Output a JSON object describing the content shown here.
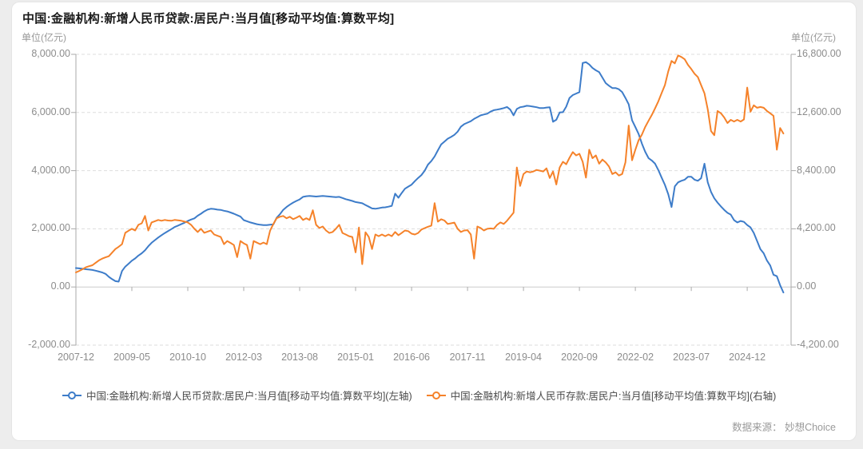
{
  "card": {
    "title": "中国:金融机构:新增人民币贷款:居民户:当月值[移动平均值:算数平均]",
    "left_unit": "单位(亿元)",
    "right_unit": "单位(亿元)",
    "source": "数据来源： 妙想Choice"
  },
  "colors": {
    "loan_series_blue": "#3d7cc9",
    "deposit_series_orange": "#f5822a",
    "grid": "#dddddd",
    "axis": "#aaaaaa"
  },
  "chart_data": {
    "type": "line",
    "frequency": "monthly",
    "x_start": "2007-12",
    "x_end": "2025-11",
    "grid": "horizontal dashed lines, x-axis line drawn on zero",
    "legend_position": "bottom",
    "x_tick_labels": [
      "2007-12",
      "2009-05",
      "2010-10",
      "2012-03",
      "2013-08",
      "2015-01",
      "2016-06",
      "2017-11",
      "2019-04",
      "2020-09",
      "2022-02",
      "2023-07",
      "2024-12"
    ],
    "x_tick_month_indices": [
      0,
      17,
      34,
      51,
      68,
      85,
      102,
      119,
      136,
      153,
      170,
      187,
      204
    ],
    "left_axis": {
      "unit": "亿元",
      "range": [
        -2000,
        8000
      ],
      "ticks": [
        8000,
        6000,
        4000,
        2000,
        0,
        -2000
      ],
      "tick_labels": [
        "8,000.00",
        "6,000.00",
        "4,000.00",
        "2,000.00",
        "0.00",
        "-2,000.00"
      ]
    },
    "right_axis": {
      "unit": "亿元",
      "range": [
        -4200,
        16800
      ],
      "ticks": [
        16800,
        12600,
        8400,
        4200,
        0,
        -4200
      ],
      "tick_labels": [
        "16,800.00",
        "12,600.00",
        "8,400.00",
        "4,200.00",
        "0.00",
        "-4,200.00"
      ]
    },
    "series": [
      {
        "name": "中国:金融机构:新增人民币贷款:居民户:当月值[移动平均值:算数平均](左轴)",
        "axis": "left",
        "color": "#3d7cc9",
        "values": [
          650,
          640,
          625,
          610,
          600,
          585,
          560,
          530,
          500,
          450,
          350,
          270,
          200,
          185,
          550,
          700,
          800,
          905,
          980,
          1080,
          1160,
          1260,
          1400,
          1520,
          1610,
          1700,
          1780,
          1855,
          1920,
          1990,
          2060,
          2110,
          2160,
          2210,
          2270,
          2320,
          2360,
          2450,
          2520,
          2600,
          2660,
          2690,
          2680,
          2660,
          2650,
          2620,
          2600,
          2560,
          2520,
          2470,
          2420,
          2300,
          2260,
          2220,
          2190,
          2160,
          2140,
          2130,
          2130,
          2140,
          2150,
          2380,
          2500,
          2650,
          2750,
          2830,
          2900,
          2960,
          3010,
          3100,
          3120,
          3130,
          3120,
          3110,
          3120,
          3130,
          3120,
          3110,
          3100,
          3090,
          3100,
          3060,
          3020,
          2990,
          2960,
          2920,
          2900,
          2880,
          2820,
          2760,
          2700,
          2690,
          2710,
          2730,
          2740,
          2760,
          2790,
          3210,
          3070,
          3230,
          3380,
          3450,
          3520,
          3640,
          3750,
          3850,
          4000,
          4210,
          4330,
          4490,
          4700,
          4900,
          5000,
          5100,
          5160,
          5230,
          5340,
          5510,
          5600,
          5650,
          5700,
          5780,
          5840,
          5900,
          5930,
          5960,
          6030,
          6080,
          6100,
          6120,
          6150,
          6190,
          6100,
          5900,
          6120,
          6180,
          6200,
          6230,
          6220,
          6200,
          6180,
          6150,
          6150,
          6170,
          6180,
          5680,
          5750,
          6000,
          6010,
          6200,
          6500,
          6600,
          6650,
          6700,
          7700,
          7730,
          7650,
          7530,
          7450,
          7390,
          7200,
          7010,
          6920,
          6840,
          6840,
          6800,
          6700,
          6500,
          6280,
          5730,
          5500,
          5260,
          4930,
          4650,
          4430,
          4350,
          4240,
          4020,
          3760,
          3510,
          3190,
          2750,
          3460,
          3600,
          3650,
          3690,
          3790,
          3790,
          3690,
          3650,
          3740,
          4240,
          3600,
          3270,
          3050,
          2900,
          2770,
          2650,
          2550,
          2490,
          2300,
          2220,
          2270,
          2240,
          2130,
          2050,
          1860,
          1580,
          1300,
          1160,
          910,
          740,
          420,
          370,
          60,
          -190
        ]
      },
      {
        "name": "中国:金融机构:新增人民币存款:居民户:当月值[移动平均值:算数平均](右轴)",
        "axis": "right",
        "color": "#f5822a",
        "values": [
          1050,
          1160,
          1280,
          1420,
          1500,
          1570,
          1750,
          1920,
          2050,
          2140,
          2220,
          2480,
          2740,
          2900,
          3090,
          3910,
          4060,
          4200,
          4080,
          4490,
          4600,
          5130,
          4080,
          4660,
          4750,
          4840,
          4780,
          4840,
          4800,
          4780,
          4840,
          4810,
          4780,
          4720,
          4660,
          4490,
          4200,
          3970,
          4200,
          3910,
          4000,
          4080,
          3790,
          3700,
          3610,
          3090,
          3320,
          3180,
          3030,
          2160,
          3320,
          3150,
          3030,
          2050,
          3320,
          3200,
          3090,
          3210,
          3090,
          4070,
          4550,
          4960,
          5070,
          5130,
          4960,
          5070,
          4900,
          5000,
          5130,
          4840,
          4960,
          4840,
          5540,
          4490,
          4260,
          4370,
          4080,
          3900,
          3970,
          4200,
          4490,
          3900,
          3790,
          3670,
          3610,
          2500,
          4300,
          1650,
          3950,
          3610,
          2740,
          3790,
          3670,
          3790,
          3670,
          3790,
          3670,
          3970,
          3740,
          3900,
          4080,
          4030,
          3850,
          3790,
          3900,
          4150,
          4250,
          4350,
          4430,
          6050,
          4720,
          4890,
          4800,
          4550,
          4600,
          4650,
          4200,
          3970,
          4080,
          4100,
          3790,
          2040,
          4370,
          4260,
          4080,
          4200,
          4230,
          4200,
          4490,
          4660,
          4550,
          4780,
          5070,
          5360,
          8630,
          7300,
          8150,
          8340,
          8280,
          8340,
          8450,
          8400,
          8340,
          8570,
          7870,
          8340,
          7400,
          8630,
          9040,
          8860,
          9330,
          9740,
          9500,
          9620,
          9040,
          7900,
          9910,
          9300,
          9500,
          8900,
          9200,
          9000,
          8700,
          8160,
          8280,
          8050,
          8160,
          9000,
          11660,
          9150,
          9910,
          10600,
          11000,
          11550,
          12000,
          12420,
          12900,
          13410,
          14000,
          14580,
          15570,
          16320,
          16150,
          16720,
          16610,
          16440,
          16030,
          15740,
          15400,
          15160,
          14580,
          13990,
          12830,
          11260,
          10960,
          12710,
          12540,
          12240,
          11840,
          12070,
          11950,
          12070,
          11950,
          12100,
          14400,
          12650,
          13120,
          12940,
          13000,
          12940,
          12710,
          12540,
          12360,
          9910,
          11480,
          11080
        ]
      }
    ]
  }
}
